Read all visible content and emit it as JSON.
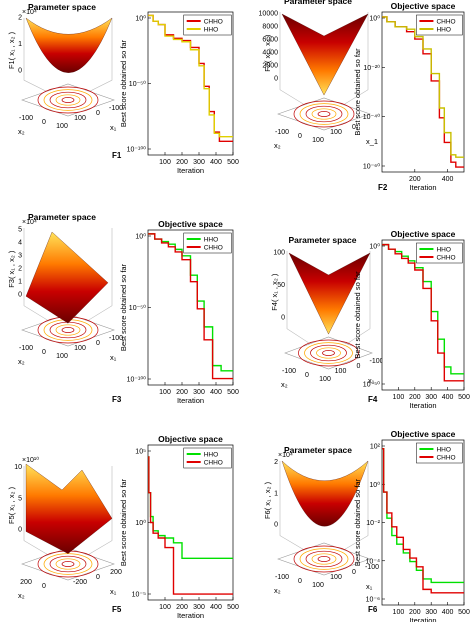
{
  "colors": {
    "hho": "#00e000",
    "chho": "#e00000",
    "surface_dark": "#7a0000",
    "surface_light": "#ffd84a"
  },
  "panels": [
    {
      "id": "F1",
      "param": {
        "title": "Parameter space",
        "zlabel": "F1( x₁ , x₂ )",
        "xlabel": "x₁",
        "ylabel": "x₂",
        "zticks": [
          "0",
          "1",
          "2"
        ],
        "zexp": "×10⁴",
        "xticks": [
          "100",
          "0",
          "-100"
        ],
        "yticks": [
          "-100",
          "0",
          "100"
        ]
      },
      "obj": {
        "title": "",
        "xlabel": "Iteration",
        "ylabel": "Best score obtained so far",
        "yticks": [
          "10⁰",
          "10⁻⁵⁰",
          "10⁻¹⁰⁰"
        ],
        "xticks": [
          "100",
          "200",
          "300",
          "400",
          "500"
        ]
      },
      "legend": [
        "CHHO",
        "HHO"
      ],
      "fn_label": "F1"
    },
    {
      "id": "F2",
      "param": {
        "title": "Parameter space",
        "zlabel": "F2( x₁ , x₂ )",
        "xlabel": "x_1",
        "ylabel": "x₂",
        "zticks": [
          "0",
          "2000",
          "4000",
          "6000",
          "8000",
          "10000"
        ],
        "zexp": "",
        "xticks": [
          "100",
          "0"
        ],
        "yticks": [
          "-100",
          "0",
          "100"
        ]
      },
      "obj": {
        "title": "Objective space",
        "xlabel": "Iteration",
        "ylabel": "Best score obtained so far",
        "yticks": [
          "10⁰",
          "10⁻²⁰",
          "10⁻⁴⁰",
          "10⁻⁶⁰"
        ],
        "xticks": [
          "200",
          "400"
        ]
      },
      "legend": [
        "CHHO",
        "HHO"
      ],
      "fn_label": "F2"
    },
    {
      "id": "F3",
      "param": {
        "title": "Parameter space",
        "zlabel": "F3( x₁ , x₂ )",
        "xlabel": "x₁",
        "ylabel": "x₂",
        "zticks": [
          "0",
          "1",
          "2",
          "3",
          "4",
          "5"
        ],
        "zexp": "×10⁴",
        "xticks": [
          "100",
          "0",
          "-100"
        ],
        "yticks": [
          "-100",
          "0",
          "100"
        ]
      },
      "obj": {
        "title": "Objective space",
        "xlabel": "Iteration",
        "ylabel": "Best score obtained so far",
        "yticks": [
          "10⁰",
          "10⁻⁵⁰",
          "10⁻¹⁰⁰"
        ],
        "xticks": [
          "100",
          "200",
          "300",
          "400",
          "500"
        ]
      },
      "legend": [
        "HHO",
        "CHHO"
      ],
      "fn_label": "F3"
    },
    {
      "id": "F4",
      "param": {
        "title": "Parameter space",
        "zlabel": "F4( x₁ , x₂ )",
        "xlabel": "x₁",
        "ylabel": "x₂",
        "zticks": [
          "0",
          "50",
          "100"
        ],
        "zexp": "",
        "xticks": [
          "100",
          "0",
          "-100"
        ],
        "yticks": [
          "-100",
          "0",
          "100"
        ]
      },
      "obj": {
        "title": "Objective space",
        "xlabel": "Iteration",
        "ylabel": "Best score obtained so far",
        "yticks": [
          "10⁰",
          "10⁻⁵⁰"
        ],
        "xticks": [
          "100",
          "200",
          "300",
          "400",
          "500"
        ]
      },
      "legend": [
        "HHO",
        "CHHO"
      ],
      "fn_label": "F4"
    },
    {
      "id": "F5",
      "param": {
        "title": "",
        "zlabel": "F5( x₁ , x₂ )",
        "xlabel": "x₁",
        "ylabel": "x₂",
        "zticks": [
          "0",
          "5",
          "10"
        ],
        "zexp": "×10¹⁰",
        "xticks": [
          "-200",
          "0",
          "200"
        ],
        "yticks": [
          "200",
          "0"
        ]
      },
      "obj": {
        "title": "Objective space",
        "xlabel": "Iteration",
        "ylabel": "Best score obtained so far",
        "yticks": [
          "10⁵",
          "10⁰",
          "10⁻⁵"
        ],
        "xticks": [
          "100",
          "200",
          "300",
          "400",
          "500"
        ]
      },
      "legend": [
        "HHO",
        "CHHO"
      ],
      "fn_label": "F5"
    },
    {
      "id": "F6",
      "param": {
        "title": "Parameter space",
        "zlabel": "F6( x₁ , x₂ )",
        "xlabel": "x₁",
        "ylabel": "x₂",
        "zticks": [
          "0",
          "1",
          "2"
        ],
        "zexp": "×10⁴",
        "xticks": [
          "100",
          "0",
          "-100"
        ],
        "yticks": [
          "-100",
          "0",
          "100"
        ]
      },
      "obj": {
        "title": "Objective space",
        "xlabel": "Iteration",
        "ylabel": "Best score obtained so far",
        "yticks": [
          "10²",
          "10⁰",
          "10⁻²",
          "10⁻⁴",
          "10⁻⁶"
        ],
        "xticks": [
          "100",
          "200",
          "300",
          "400",
          "500"
        ]
      },
      "legend": [
        "HHO",
        "CHHO"
      ],
      "fn_label": "F6"
    }
  ],
  "chart_data": [
    {
      "type": "line",
      "panel": "F1",
      "yscale": "log",
      "xlim": [
        0,
        500
      ],
      "ylim_exp": [
        -120,
        5
      ],
      "series": [
        {
          "name": "CHHO",
          "color": "#e00000",
          "x": [
            1,
            30,
            60,
            100,
            150,
            200,
            250,
            300,
            330,
            360,
            390,
            420,
            500
          ],
          "y_exp": [
            2,
            -3,
            -6,
            -15,
            -18,
            -20,
            -26,
            -40,
            -60,
            -82,
            -100,
            -108,
            -108
          ]
        },
        {
          "name": "HHO",
          "color": "#e0d000",
          "x": [
            1,
            30,
            60,
            100,
            150,
            200,
            250,
            300,
            330,
            360,
            390,
            420,
            500
          ],
          "y_exp": [
            2,
            -3,
            -6,
            -16,
            -19,
            -21,
            -28,
            -42,
            -62,
            -85,
            -101,
            -104,
            -104
          ]
        }
      ]
    },
    {
      "type": "line",
      "panel": "F2",
      "yscale": "log",
      "xlim": [
        0,
        500
      ],
      "ylim_exp": [
        -62,
        3
      ],
      "series": [
        {
          "name": "CHHO",
          "color": "#e00000",
          "x": [
            1,
            30,
            80,
            150,
            200,
            250,
            300,
            350,
            380,
            420,
            450,
            500
          ],
          "y_exp": [
            1,
            -1,
            -3,
            -5,
            -8,
            -14,
            -25,
            -40,
            -50,
            -58,
            -60,
            -60
          ]
        },
        {
          "name": "HHO",
          "color": "#c8c000",
          "x": [
            1,
            30,
            80,
            150,
            200,
            250,
            300,
            350,
            380,
            420,
            450,
            500
          ],
          "y_exp": [
            1,
            -1,
            -3,
            -4,
            -7,
            -12,
            -22,
            -36,
            -46,
            -55,
            -56,
            -56
          ]
        }
      ]
    },
    {
      "type": "line",
      "panel": "F3",
      "yscale": "log",
      "xlim": [
        0,
        500
      ],
      "ylim_exp": [
        -115,
        5
      ],
      "series": [
        {
          "name": "HHO",
          "color": "#00e000",
          "x": [
            1,
            40,
            80,
            120,
            160,
            200,
            250,
            290,
            330,
            380,
            430,
            500
          ],
          "y_exp": [
            2,
            -2,
            -4,
            -6,
            -10,
            -15,
            -30,
            -50,
            -70,
            -100,
            -104,
            -104
          ]
        },
        {
          "name": "CHHO",
          "color": "#e00000",
          "x": [
            1,
            40,
            80,
            120,
            160,
            200,
            250,
            290,
            330,
            380,
            430,
            500
          ],
          "y_exp": [
            2,
            -2,
            -5,
            -8,
            -12,
            -18,
            -35,
            -56,
            -80,
            -110,
            -110,
            -110
          ]
        }
      ]
    },
    {
      "type": "line",
      "panel": "F4",
      "yscale": "log",
      "xlim": [
        0,
        500
      ],
      "ylim_exp": [
        -62,
        3
      ],
      "series": [
        {
          "name": "HHO",
          "color": "#00e000",
          "x": [
            1,
            40,
            80,
            120,
            160,
            200,
            250,
            300,
            340,
            380,
            420,
            500
          ],
          "y_exp": [
            1,
            -1,
            -2,
            -4,
            -6,
            -9,
            -15,
            -28,
            -40,
            -52,
            -55,
            -55
          ]
        },
        {
          "name": "CHHO",
          "color": "#e00000",
          "x": [
            1,
            40,
            80,
            120,
            160,
            200,
            250,
            300,
            340,
            380,
            420,
            500
          ],
          "y_exp": [
            1,
            -1,
            -3,
            -5,
            -7,
            -10,
            -18,
            -32,
            -46,
            -58,
            -58,
            -58
          ]
        }
      ]
    },
    {
      "type": "line",
      "panel": "F5",
      "yscale": "log",
      "xlim": [
        0,
        500
      ],
      "ylim_exp": [
        -7,
        6
      ],
      "series": [
        {
          "name": "HHO",
          "color": "#00e000",
          "x": [
            1,
            5,
            15,
            30,
            60,
            100,
            150,
            200,
            260,
            300,
            400,
            500
          ],
          "y_exp": [
            5,
            2,
            0,
            -1.2,
            -1.6,
            -1.8,
            -2.2,
            -3.5,
            -3.5,
            -3.5,
            -3.5,
            -3.5
          ]
        },
        {
          "name": "CHHO",
          "color": "#e00000",
          "x": [
            1,
            5,
            15,
            30,
            60,
            100,
            150,
            200,
            260,
            300,
            400,
            500
          ],
          "y_exp": [
            5,
            2,
            -0.5,
            -1.4,
            -1.8,
            -2.6,
            -6.5,
            -6.5,
            -6.5,
            -6.5,
            -6.5,
            -6.5
          ]
        }
      ]
    },
    {
      "type": "line",
      "panel": "F6",
      "yscale": "log",
      "xlim": [
        0,
        500
      ],
      "ylim_exp": [
        -6.5,
        3
      ],
      "series": [
        {
          "name": "HHO",
          "color": "#00e000",
          "x": [
            1,
            10,
            30,
            60,
            90,
            130,
            170,
            210,
            250,
            300,
            400,
            500
          ],
          "y_exp": [
            2.5,
            0,
            -1.5,
            -2.5,
            -3,
            -3.5,
            -4,
            -4.5,
            -5,
            -5.2,
            -5.2,
            -5.2
          ]
        },
        {
          "name": "CHHO",
          "color": "#e00000",
          "x": [
            1,
            10,
            30,
            60,
            90,
            130,
            170,
            210,
            250,
            300,
            400,
            500
          ],
          "y_exp": [
            2.5,
            0,
            -1.2,
            -2,
            -2.6,
            -3.3,
            -3.8,
            -4.3,
            -5.6,
            -5.8,
            -5.8,
            -5.8
          ]
        }
      ]
    }
  ]
}
